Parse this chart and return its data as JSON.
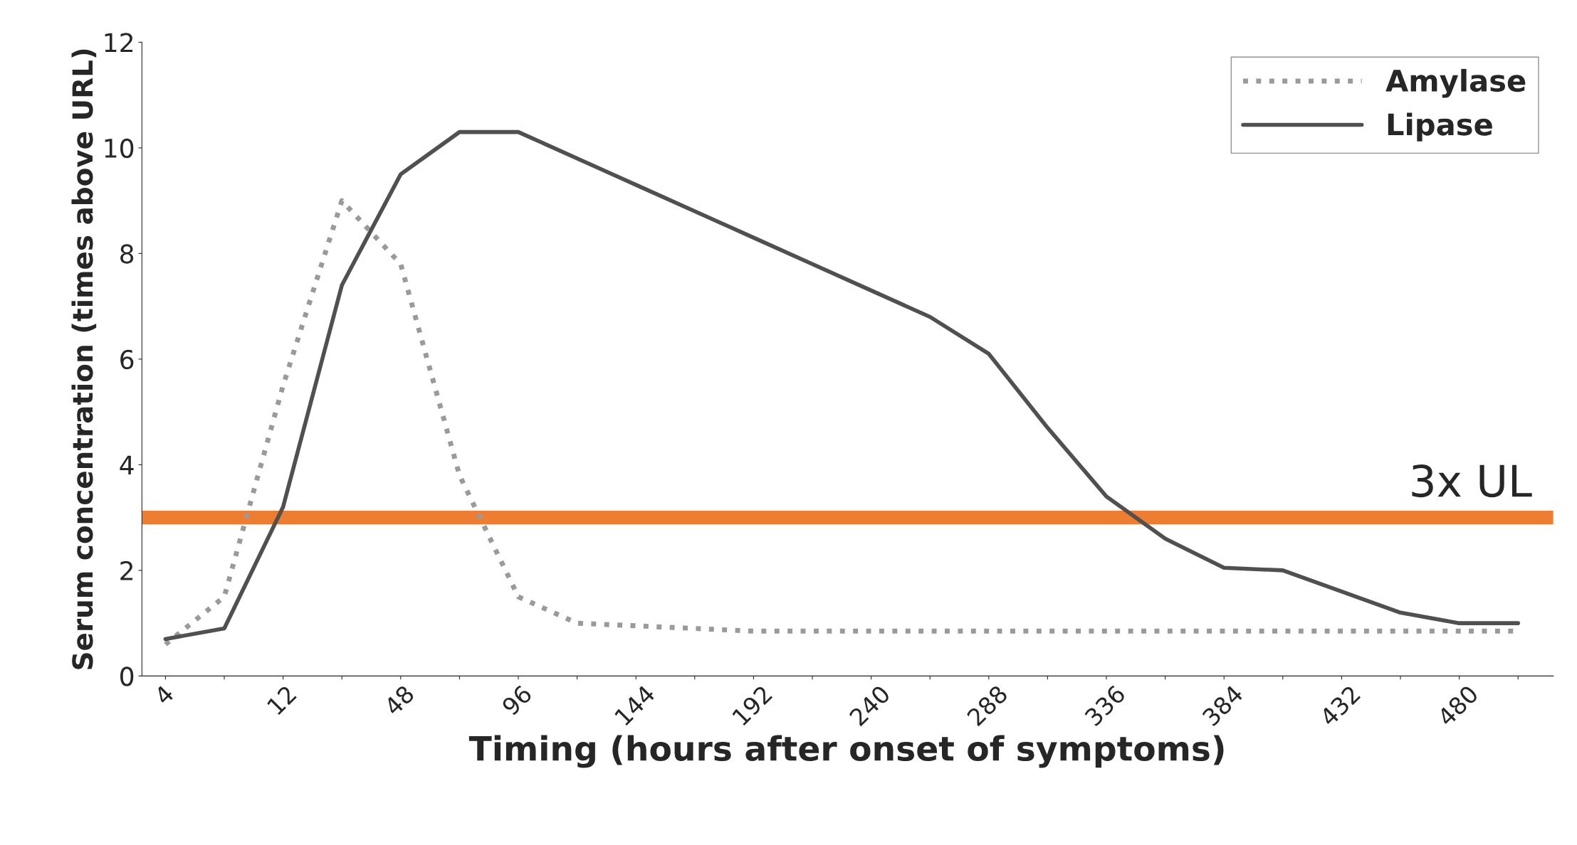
{
  "chart_data": {
    "type": "line",
    "xlabel": "Timing (hours after onset of symptoms)",
    "ylabel": "Serum concentration (times above URL)",
    "categories": [
      "4",
      null,
      "12",
      null,
      "48",
      null,
      "96",
      null,
      "144",
      null,
      "192",
      null,
      "240",
      null,
      "288",
      null,
      "336",
      null,
      "384",
      null,
      "432",
      null,
      "480",
      null
    ],
    "series": [
      {
        "name": "Amylase",
        "color": "#9a9a9a",
        "line_style": "dotted",
        "values": [
          0.6,
          1.5,
          5.5,
          9.0,
          7.8,
          3.8,
          1.5,
          1.0,
          0.95,
          0.9,
          0.85,
          0.85,
          0.85,
          0.85,
          0.85,
          0.85,
          0.85,
          0.85,
          0.85,
          0.85,
          0.85,
          0.85,
          0.85,
          0.85
        ]
      },
      {
        "name": "Lipase",
        "color": "#505050",
        "line_style": "solid",
        "values": [
          0.7,
          0.9,
          3.2,
          7.4,
          9.5,
          10.3,
          10.3,
          9.8,
          9.3,
          8.8,
          8.3,
          7.8,
          7.3,
          6.8,
          6.1,
          4.7,
          3.4,
          2.6,
          2.05,
          2.0,
          1.6,
          1.2,
          1.0,
          1.0
        ]
      }
    ],
    "ylim": [
      0,
      12
    ],
    "yticks": [
      0,
      2,
      4,
      6,
      8,
      10,
      12
    ],
    "ref_lines": [
      {
        "axis": "y",
        "value": 3,
        "label": "3x UL",
        "color": "#ed7d31"
      }
    ],
    "legend": "top right",
    "grid": false,
    "marker": "none"
  }
}
